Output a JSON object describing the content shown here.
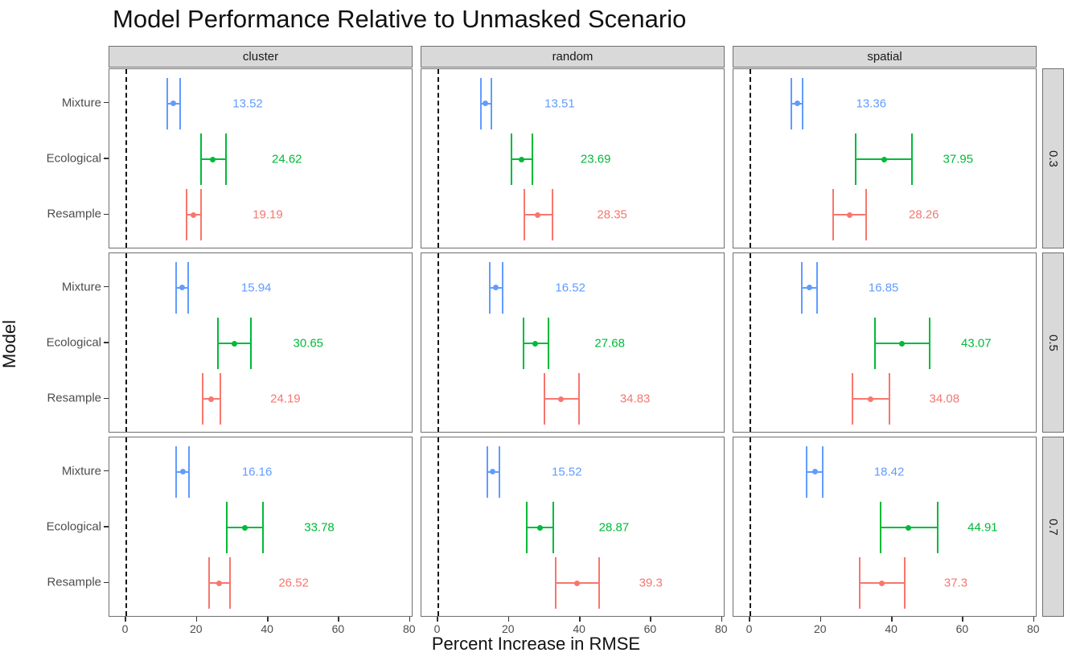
{
  "title": "Model Performance Relative to Unmasked Scenario",
  "x_axis_title": "Percent Increase in RMSE",
  "y_axis_title": "Model",
  "chart_data": {
    "type": "scatter",
    "subtype": "faceted-pointrange-errorbar",
    "facet_columns": [
      "cluster",
      "random",
      "spatial"
    ],
    "facet_rows": [
      "0.3",
      "0.5",
      "0.7"
    ],
    "models": [
      "Mixture",
      "Ecological",
      "Resample"
    ],
    "series_colors": {
      "Mixture": "#619CFF",
      "Ecological": "#00BA38",
      "Resample": "#F8766D"
    },
    "x_ticks": [
      0,
      20,
      40,
      60,
      80
    ],
    "x_domain": [
      -4.64,
      80.96
    ],
    "reference_line_x": 0,
    "grid": "off",
    "legend": "none",
    "label_offset_units": 21,
    "panels": [
      {
        "facet_col": "cluster",
        "facet_row": "0.3",
        "points": [
          {
            "model": "Mixture",
            "value": 13.52,
            "label": "13.52",
            "lower": 11.8,
            "upper": 15.4
          },
          {
            "model": "Ecological",
            "value": 24.62,
            "label": "24.62",
            "lower": 21.2,
            "upper": 28.4
          },
          {
            "model": "Resample",
            "value": 19.19,
            "label": "19.19",
            "lower": 17.3,
            "upper": 21.4
          }
        ]
      },
      {
        "facet_col": "random",
        "facet_row": "0.3",
        "points": [
          {
            "model": "Mixture",
            "value": 13.51,
            "label": "13.51",
            "lower": 12.1,
            "upper": 15.2
          },
          {
            "model": "Ecological",
            "value": 23.69,
            "label": "23.69",
            "lower": 20.9,
            "upper": 26.8
          },
          {
            "model": "Resample",
            "value": 28.35,
            "label": "28.35",
            "lower": 24.5,
            "upper": 32.5
          }
        ]
      },
      {
        "facet_col": "spatial",
        "facet_row": "0.3",
        "points": [
          {
            "model": "Mixture",
            "value": 13.36,
            "label": "13.36",
            "lower": 11.8,
            "upper": 15.0
          },
          {
            "model": "Ecological",
            "value": 37.95,
            "label": "37.95",
            "lower": 29.9,
            "upper": 46.0
          },
          {
            "model": "Resample",
            "value": 28.26,
            "label": "28.26",
            "lower": 23.7,
            "upper": 33.0
          }
        ]
      },
      {
        "facet_col": "cluster",
        "facet_row": "0.5",
        "points": [
          {
            "model": "Mixture",
            "value": 15.94,
            "label": "15.94",
            "lower": 14.3,
            "upper": 17.6
          },
          {
            "model": "Ecological",
            "value": 30.65,
            "label": "30.65",
            "lower": 26.0,
            "upper": 35.4
          },
          {
            "model": "Resample",
            "value": 24.19,
            "label": "24.19",
            "lower": 21.8,
            "upper": 26.7
          }
        ]
      },
      {
        "facet_col": "random",
        "facet_row": "0.5",
        "points": [
          {
            "model": "Mixture",
            "value": 16.52,
            "label": "16.52",
            "lower": 14.7,
            "upper": 18.3
          },
          {
            "model": "Ecological",
            "value": 27.68,
            "label": "27.68",
            "lower": 24.2,
            "upper": 31.3
          },
          {
            "model": "Resample",
            "value": 34.83,
            "label": "34.83",
            "lower": 30.2,
            "upper": 39.9
          }
        ]
      },
      {
        "facet_col": "spatial",
        "facet_row": "0.5",
        "points": [
          {
            "model": "Mixture",
            "value": 16.85,
            "label": "16.85",
            "lower": 14.7,
            "upper": 19.0
          },
          {
            "model": "Ecological",
            "value": 43.07,
            "label": "43.07",
            "lower": 35.5,
            "upper": 50.9
          },
          {
            "model": "Resample",
            "value": 34.08,
            "label": "34.08",
            "lower": 29.0,
            "upper": 39.6
          }
        ]
      },
      {
        "facet_col": "cluster",
        "facet_row": "0.7",
        "points": [
          {
            "model": "Mixture",
            "value": 16.16,
            "label": "16.16",
            "lower": 14.3,
            "upper": 17.8
          },
          {
            "model": "Ecological",
            "value": 33.78,
            "label": "33.78",
            "lower": 28.7,
            "upper": 38.8
          },
          {
            "model": "Resample",
            "value": 26.52,
            "label": "26.52",
            "lower": 23.7,
            "upper": 29.4
          }
        ]
      },
      {
        "facet_col": "random",
        "facet_row": "0.7",
        "points": [
          {
            "model": "Mixture",
            "value": 15.52,
            "label": "15.52",
            "lower": 14.0,
            "upper": 17.4
          },
          {
            "model": "Ecological",
            "value": 28.87,
            "label": "28.87",
            "lower": 25.1,
            "upper": 32.8
          },
          {
            "model": "Resample",
            "value": 39.3,
            "label": "39.3",
            "lower": 33.4,
            "upper": 45.7
          }
        ]
      },
      {
        "facet_col": "spatial",
        "facet_row": "0.7",
        "points": [
          {
            "model": "Mixture",
            "value": 18.42,
            "label": "18.42",
            "lower": 16.0,
            "upper": 20.7
          },
          {
            "model": "Ecological",
            "value": 44.91,
            "label": "44.91",
            "lower": 37.0,
            "upper": 53.2
          },
          {
            "model": "Resample",
            "value": 37.3,
            "label": "37.3",
            "lower": 31.0,
            "upper": 43.9
          }
        ]
      }
    ]
  }
}
